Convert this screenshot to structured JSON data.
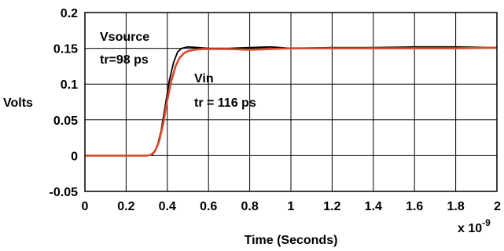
{
  "chart_data": {
    "type": "line",
    "xlabel": "Time (Seconds)",
    "xscale_label": "x 10",
    "xscale_exp": "-9",
    "ylabel": "Volts",
    "xlim": [
      0,
      2
    ],
    "ylim": [
      -0.05,
      0.2
    ],
    "x_ticks": [
      0,
      0.2,
      0.4,
      0.6,
      0.8,
      1,
      1.2,
      1.4,
      1.6,
      1.8,
      2
    ],
    "x_tick_labels": [
      "0",
      "0.2",
      "0.4",
      "0.6",
      "0.8",
      "1",
      "1.2",
      "1.4",
      "1.6",
      "1.8",
      "2"
    ],
    "y_ticks": [
      -0.05,
      0,
      0.05,
      0.1,
      0.15,
      0.2
    ],
    "y_tick_labels": [
      "-0.05",
      "0",
      "0.05",
      "0.1",
      "0.15",
      "0.2"
    ],
    "grid": true,
    "annotations": [
      {
        "line1": "Vsource",
        "line2": "tr=98 ps"
      },
      {
        "line1": "Vin",
        "line2": "tr = 116 ps"
      }
    ],
    "series": [
      {
        "color": "#000000",
        "x": [
          0,
          0.1,
          0.2,
          0.3,
          0.33,
          0.35,
          0.37,
          0.39,
          0.41,
          0.43,
          0.45,
          0.47,
          0.5,
          0.55,
          0.6,
          0.7,
          0.8,
          0.9,
          0.95,
          1.0,
          1.2,
          1.4,
          1.6,
          1.8,
          2.0
        ],
        "y": [
          0,
          0,
          0,
          0,
          0.002,
          0.012,
          0.035,
          0.07,
          0.105,
          0.13,
          0.145,
          0.15,
          0.152,
          0.151,
          0.15,
          0.15,
          0.151,
          0.152,
          0.151,
          0.15,
          0.151,
          0.151,
          0.152,
          0.152,
          0.151
        ]
      },
      {
        "color": "#d84a2a",
        "x": [
          0,
          0.1,
          0.2,
          0.3,
          0.32,
          0.34,
          0.36,
          0.38,
          0.4,
          0.42,
          0.44,
          0.46,
          0.48,
          0.5,
          0.53,
          0.57,
          0.6,
          0.7,
          0.8,
          0.9,
          1.0,
          1.2,
          1.4,
          1.6,
          1.8,
          2.0
        ],
        "y": [
          0,
          0,
          0,
          0,
          0.001,
          0.006,
          0.02,
          0.045,
          0.078,
          0.105,
          0.125,
          0.137,
          0.143,
          0.146,
          0.148,
          0.149,
          0.149,
          0.149,
          0.148,
          0.149,
          0.15,
          0.15,
          0.15,
          0.15,
          0.15,
          0.151
        ]
      }
    ]
  }
}
